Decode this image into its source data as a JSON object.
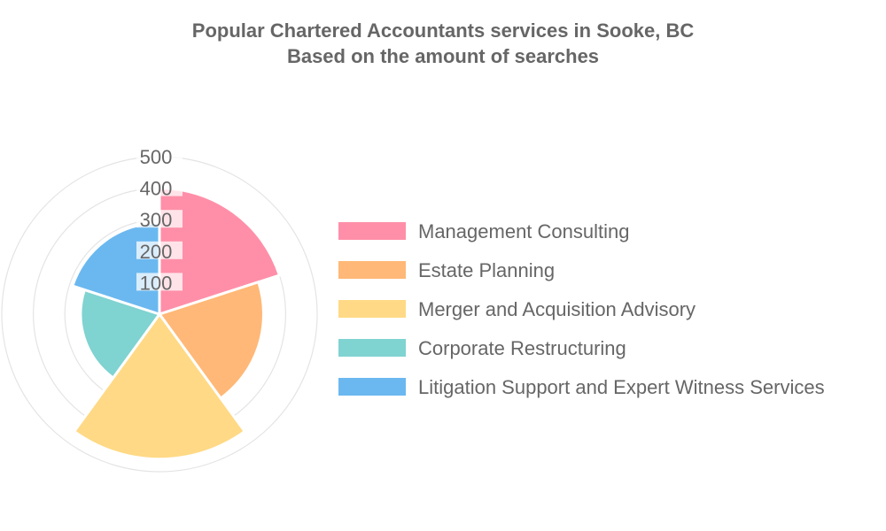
{
  "chart_data": {
    "type": "polarArea",
    "title": "Popular Chartered Accountants services in Sooke, BC",
    "subtitle": "Based on the amount of searches",
    "categories": [
      "Management Consulting",
      "Estate Planning",
      "Merger and Acquisition Advisory",
      "Corporate Restructuring",
      "Litigation Support and Expert Witness Services"
    ],
    "values": [
      400,
      330,
      460,
      250,
      290
    ],
    "colors": [
      "#ff8fa8",
      "#ffb877",
      "#ffd985",
      "#7fd3d1",
      "#6bb8f0"
    ],
    "radial_axis": {
      "min": 0,
      "max": 500,
      "ticks": [
        100,
        200,
        300,
        400,
        500
      ]
    },
    "grid": true,
    "legend": "right"
  }
}
